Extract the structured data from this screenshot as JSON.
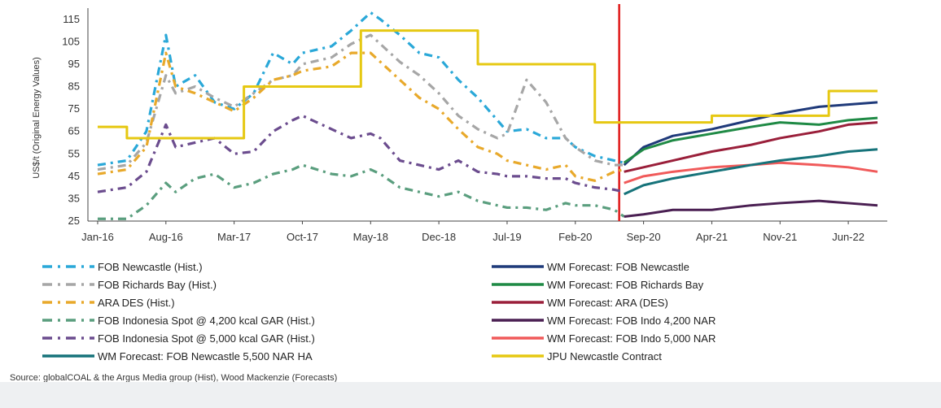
{
  "chart_data": {
    "type": "line",
    "title": "",
    "ylabel": "US$/t (Original Energy Values)",
    "xlabel": "",
    "ylim": [
      25,
      120
    ],
    "yticks": [
      25,
      35,
      45,
      55,
      65,
      75,
      85,
      95,
      105,
      115
    ],
    "x_tick_labels": [
      "Jan-16",
      "Aug-16",
      "Mar-17",
      "Oct-17",
      "May-18",
      "Dec-18",
      "Jul-19",
      "Feb-20",
      "Sep-20",
      "Apr-21",
      "Nov-21",
      "Jun-22"
    ],
    "forecast_start": "Jul-20",
    "source": "Source: globalCOAL & the Argus Media group (Hist), Wood Mackenzie (Forecasts)",
    "legend_left": [
      "FOB Newcastle (Hist.)",
      "FOB Richards Bay (Hist.)",
      "ARA DES (Hist.)",
      "FOB Indonesia Spot @ 4,200 kcal GAR (Hist.)",
      "FOB Indonesia Spot @ 5,000 kcal GAR (Hist.)",
      "WM Forecast: FOB Newcastle 5,500 NAR HA"
    ],
    "legend_right": [
      "WM Forecast: FOB Newcastle",
      "WM Forecast: FOB Richards Bay",
      "WM Forecast: ARA (DES)",
      "WM Forecast: FOB Indo 4,200 NAR",
      "WM Forecast: FOB Indo 5,000 NAR",
      "JPU Newcastle Contract"
    ],
    "series": [
      {
        "name": "FOB Newcastle (Hist.)",
        "color": "#2aa8d8",
        "style": "dashdot",
        "x": [
          "Jan-16",
          "Apr-16",
          "Jun-16",
          "Aug-16",
          "Sep-16",
          "Nov-16",
          "Jan-17",
          "Mar-17",
          "May-17",
          "Jul-17",
          "Sep-17",
          "Oct-17",
          "Jan-18",
          "Mar-18",
          "May-18",
          "Jun-18",
          "Aug-18",
          "Oct-18",
          "Dec-18",
          "Feb-19",
          "Apr-19",
          "Jun-19",
          "Jul-19",
          "Sep-19",
          "Nov-19",
          "Jan-20",
          "Feb-20",
          "Apr-20",
          "Jun-20",
          "Jul-20"
        ],
        "y": [
          50,
          52,
          65,
          108,
          85,
          90,
          78,
          75,
          82,
          100,
          95,
          100,
          103,
          110,
          118,
          115,
          108,
          100,
          98,
          88,
          80,
          70,
          65,
          66,
          62,
          62,
          58,
          54,
          52,
          51
        ]
      },
      {
        "name": "FOB Richards Bay (Hist.)",
        "color": "#a6a6a6",
        "style": "dashdot",
        "x": [
          "Jan-16",
          "Apr-16",
          "Jun-16",
          "Aug-16",
          "Sep-16",
          "Nov-16",
          "Jan-17",
          "Mar-17",
          "May-17",
          "Jul-17",
          "Sep-17",
          "Oct-17",
          "Jan-18",
          "Mar-18",
          "May-18",
          "Jun-18",
          "Aug-18",
          "Oct-18",
          "Dec-18",
          "Feb-19",
          "Apr-19",
          "Jun-19",
          "Jul-19",
          "Sep-19",
          "Nov-19",
          "Jan-20",
          "Feb-20",
          "Apr-20",
          "Jun-20",
          "Jul-20"
        ],
        "y": [
          48,
          50,
          60,
          90,
          82,
          85,
          80,
          76,
          82,
          88,
          90,
          95,
          98,
          104,
          108,
          104,
          96,
          90,
          82,
          72,
          66,
          62,
          64,
          88,
          78,
          62,
          58,
          52,
          50,
          50
        ]
      },
      {
        "name": "ARA DES (Hist.)",
        "color": "#e8a92b",
        "style": "dashdot",
        "x": [
          "Jan-16",
          "Apr-16",
          "Jun-16",
          "Aug-16",
          "Sep-16",
          "Nov-16",
          "Jan-17",
          "Mar-17",
          "May-17",
          "Jul-17",
          "Sep-17",
          "Oct-17",
          "Jan-18",
          "Mar-18",
          "May-18",
          "Jun-18",
          "Aug-18",
          "Oct-18",
          "Dec-18",
          "Feb-19",
          "Apr-19",
          "Jun-19",
          "Jul-19",
          "Sep-19",
          "Nov-19",
          "Jan-20",
          "Feb-20",
          "Apr-20",
          "Jun-20",
          "Jul-20"
        ],
        "y": [
          46,
          48,
          58,
          100,
          85,
          82,
          78,
          74,
          80,
          88,
          90,
          92,
          94,
          100,
          100,
          96,
          88,
          80,
          75,
          66,
          58,
          55,
          52,
          50,
          48,
          50,
          45,
          43,
          47,
          48
        ]
      },
      {
        "name": "FOB Indonesia Spot @ 4,200 kcal GAR (Hist.)",
        "color": "#5a9e7e",
        "style": "dashdot",
        "x": [
          "Jan-16",
          "Apr-16",
          "Jun-16",
          "Aug-16",
          "Sep-16",
          "Nov-16",
          "Jan-17",
          "Mar-17",
          "May-17",
          "Jul-17",
          "Sep-17",
          "Oct-17",
          "Jan-18",
          "Mar-18",
          "May-18",
          "Jun-18",
          "Aug-18",
          "Oct-18",
          "Dec-18",
          "Feb-19",
          "Apr-19",
          "Jun-19",
          "Jul-19",
          "Sep-19",
          "Nov-19",
          "Jan-20",
          "Feb-20",
          "Apr-20",
          "Jun-20",
          "Jul-20"
        ],
        "y": [
          26,
          26,
          32,
          42,
          38,
          44,
          46,
          40,
          42,
          46,
          48,
          50,
          46,
          45,
          48,
          46,
          40,
          38,
          36,
          38,
          34,
          32,
          31,
          31,
          30,
          33,
          32,
          32,
          30,
          27
        ]
      },
      {
        "name": "FOB Indonesia Spot @ 5,000 kcal GAR (Hist.)",
        "color": "#6b4c8e",
        "style": "dashdot",
        "x": [
          "Jan-16",
          "Apr-16",
          "Jun-16",
          "Aug-16",
          "Sep-16",
          "Nov-16",
          "Jan-17",
          "Mar-17",
          "May-17",
          "Jul-17",
          "Sep-17",
          "Oct-17",
          "Jan-18",
          "Mar-18",
          "May-18",
          "Jun-18",
          "Aug-18",
          "Oct-18",
          "Dec-18",
          "Feb-19",
          "Apr-19",
          "Jun-19",
          "Jul-19",
          "Sep-19",
          "Nov-19",
          "Jan-20",
          "Feb-20",
          "Apr-20",
          "Jun-20",
          "Jul-20"
        ],
        "y": [
          38,
          40,
          47,
          68,
          58,
          60,
          62,
          55,
          56,
          65,
          70,
          72,
          66,
          62,
          64,
          62,
          52,
          50,
          48,
          52,
          47,
          46,
          45,
          45,
          44,
          44,
          42,
          40,
          39,
          38
        ]
      },
      {
        "name": "WM Forecast: FOB Newcastle",
        "color": "#1f3a7a",
        "style": "solid",
        "x": [
          "Jul-20",
          "Sep-20",
          "Dec-20",
          "Apr-21",
          "Aug-21",
          "Nov-21",
          "Mar-22",
          "Jun-22",
          "Sep-22"
        ],
        "y": [
          50,
          58,
          63,
          66,
          70,
          73,
          76,
          77,
          78
        ]
      },
      {
        "name": "WM Forecast: FOB Richards Bay",
        "color": "#1f8a45",
        "style": "solid",
        "x": [
          "Jul-20",
          "Sep-20",
          "Dec-20",
          "Apr-21",
          "Aug-21",
          "Nov-21",
          "Mar-22",
          "Jun-22",
          "Sep-22"
        ],
        "y": [
          51,
          57,
          61,
          64,
          67,
          69,
          68,
          70,
          71
        ]
      },
      {
        "name": "WM Forecast: ARA (DES)",
        "color": "#9a1f3a",
        "style": "solid",
        "x": [
          "Jul-20",
          "Sep-20",
          "Dec-20",
          "Apr-21",
          "Aug-21",
          "Nov-21",
          "Mar-22",
          "Jun-22",
          "Sep-22"
        ],
        "y": [
          47,
          49,
          52,
          56,
          59,
          62,
          65,
          68,
          69
        ]
      },
      {
        "name": "WM Forecast: FOB Indo 4,200 NAR",
        "color": "#4a1f52",
        "style": "solid",
        "x": [
          "Jul-20",
          "Sep-20",
          "Dec-20",
          "Apr-21",
          "Aug-21",
          "Nov-21",
          "Mar-22",
          "Jun-22",
          "Sep-22"
        ],
        "y": [
          27,
          28,
          30,
          30,
          32,
          33,
          34,
          33,
          32
        ]
      },
      {
        "name": "WM Forecast: FOB Indo 5,000 NAR",
        "color": "#f05a5a",
        "style": "solid",
        "x": [
          "Jul-20",
          "Sep-20",
          "Dec-20",
          "Apr-21",
          "Aug-21",
          "Nov-21",
          "Mar-22",
          "Jun-22",
          "Sep-22"
        ],
        "y": [
          42,
          45,
          47,
          49,
          50,
          51,
          50,
          49,
          47
        ]
      },
      {
        "name": "WM Forecast: FOB Newcastle 5,500 NAR HA",
        "color": "#16737a",
        "style": "solid",
        "x": [
          "Jul-20",
          "Sep-20",
          "Dec-20",
          "Apr-21",
          "Aug-21",
          "Nov-21",
          "Mar-22",
          "Jun-22",
          "Sep-22"
        ],
        "y": [
          37,
          41,
          44,
          47,
          50,
          52,
          54,
          56,
          57
        ]
      },
      {
        "name": "JPU Newcastle Contract",
        "color": "#e6c812",
        "style": "step",
        "x": [
          "Jan-16",
          "Apr-16",
          "Apr-17",
          "Apr-18",
          "Apr-19",
          "Apr-20",
          "Apr-21",
          "Apr-22",
          "Sep-22"
        ],
        "y": [
          67,
          62,
          85,
          110,
          95,
          69,
          72,
          83,
          83
        ]
      }
    ]
  }
}
